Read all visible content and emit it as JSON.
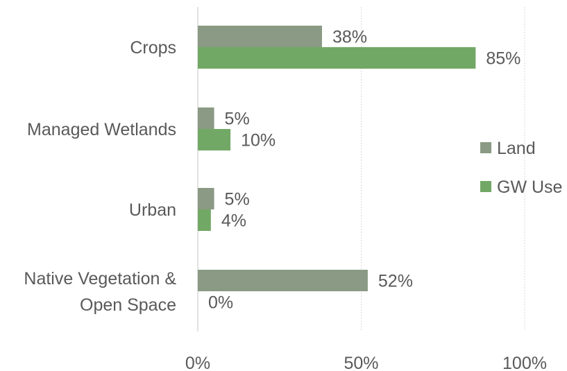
{
  "chart_data": {
    "type": "bar",
    "orientation": "horizontal",
    "categories": [
      "Crops",
      "Managed Wetlands",
      "Urban",
      "Native Vegetation & Open Space"
    ],
    "category_lines": [
      [
        "Crops"
      ],
      [
        "Managed Wetlands"
      ],
      [
        "Urban"
      ],
      [
        "Native Vegetation &",
        "Open Space"
      ]
    ],
    "series": [
      {
        "name": "Land",
        "values": [
          38,
          5,
          5,
          52
        ],
        "labels": [
          "38%",
          "5%",
          "5%",
          "52%"
        ],
        "color": "#8a9a84"
      },
      {
        "name": "GW Use",
        "values": [
          85,
          10,
          4,
          0
        ],
        "labels": [
          "85%",
          "10%",
          "4%",
          "0%"
        ],
        "color": "#72a865"
      }
    ],
    "xlim": [
      0,
      100
    ],
    "x_ticks": [
      0,
      50,
      100
    ],
    "x_tick_labels": [
      "0%",
      "50%",
      "100%"
    ],
    "grid": "vertical dotted",
    "legend_position": "right",
    "title": "",
    "xlabel": "",
    "ylabel": ""
  },
  "colors": {
    "text": "#595959",
    "axis": "#d9d9d9",
    "grid": "#d9d9d9"
  }
}
